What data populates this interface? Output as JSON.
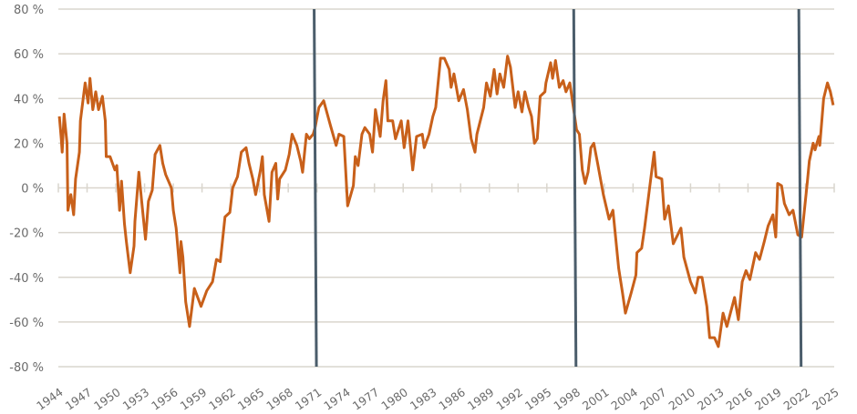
{
  "chart_data": {
    "type": "line",
    "title": "",
    "xlabel": "",
    "ylabel": "",
    "xlim": [
      1944,
      2025
    ],
    "ylim": [
      -80,
      80
    ],
    "grid": true,
    "legend": "none",
    "y_ticks": [
      80,
      60,
      40,
      20,
      0,
      -20,
      -40,
      -60,
      -80
    ],
    "y_tick_labels": [
      "80 %",
      "60 %",
      "40 %",
      "20 %",
      "0 %",
      "-20 %",
      "-40 %",
      "-60 %",
      "-80 %"
    ],
    "x_ticks": [
      1944,
      1947,
      1950,
      1953,
      1956,
      1959,
      1962,
      1965,
      1968,
      1971,
      1974,
      1977,
      1980,
      1983,
      1986,
      1989,
      1992,
      1995,
      1998,
      2001,
      2004,
      2007,
      2010,
      2013,
      2016,
      2019,
      2022,
      2025
    ],
    "x_tick_labels": [
      "1944",
      "1947",
      "1950",
      "1953",
      "1956",
      "1959",
      "1962",
      "1965",
      "1968",
      "1971",
      "1974",
      "1977",
      "1980",
      "1983",
      "1986",
      "1989",
      "1992",
      "1995",
      "1998",
      "2001",
      "2004",
      "2007",
      "2010",
      "2013",
      "2016",
      "2019",
      "2022",
      "2025"
    ],
    "vertical_markers": [
      1970.8,
      1997.9,
      2021.4
    ],
    "colors": {
      "series": "#c8601a",
      "markers": "#4b5d6b",
      "grid": "#d9d5cd",
      "text": "#6b6b6b"
    },
    "series": [
      {
        "name": "series",
        "points": [
          [
            1944.1,
            32
          ],
          [
            1944.3,
            22
          ],
          [
            1944.4,
            16
          ],
          [
            1944.6,
            33
          ],
          [
            1944.9,
            20
          ],
          [
            1945.0,
            -10
          ],
          [
            1945.3,
            -3
          ],
          [
            1945.6,
            -12
          ],
          [
            1945.8,
            4
          ],
          [
            1946.2,
            16
          ],
          [
            1946.3,
            30
          ],
          [
            1946.8,
            47
          ],
          [
            1947.1,
            38
          ],
          [
            1947.3,
            49
          ],
          [
            1947.6,
            35
          ],
          [
            1947.9,
            43
          ],
          [
            1948.2,
            35
          ],
          [
            1948.6,
            41
          ],
          [
            1948.9,
            30
          ],
          [
            1949.0,
            14
          ],
          [
            1949.4,
            14
          ],
          [
            1949.9,
            8
          ],
          [
            1950.1,
            10
          ],
          [
            1950.4,
            -10
          ],
          [
            1950.6,
            3
          ],
          [
            1950.9,
            -16
          ],
          [
            1951.1,
            -24
          ],
          [
            1951.5,
            -38
          ],
          [
            1951.9,
            -26
          ],
          [
            1952.0,
            -15
          ],
          [
            1952.4,
            7
          ],
          [
            1952.7,
            -6
          ],
          [
            1953.1,
            -23
          ],
          [
            1953.4,
            -6
          ],
          [
            1953.8,
            -1
          ],
          [
            1954.1,
            15
          ],
          [
            1954.6,
            19
          ],
          [
            1954.9,
            11
          ],
          [
            1955.2,
            6
          ],
          [
            1955.8,
            0
          ],
          [
            1956.0,
            -10
          ],
          [
            1956.3,
            -18
          ],
          [
            1956.7,
            -38
          ],
          [
            1956.8,
            -24
          ],
          [
            1957.0,
            -31
          ],
          [
            1957.3,
            -51
          ],
          [
            1957.7,
            -62
          ],
          [
            1958.2,
            -45
          ],
          [
            1958.9,
            -53
          ],
          [
            1959.5,
            -46
          ],
          [
            1960.1,
            -42
          ],
          [
            1960.5,
            -32
          ],
          [
            1960.9,
            -33
          ],
          [
            1961.4,
            -13
          ],
          [
            1961.9,
            -11
          ],
          [
            1962.2,
            0
          ],
          [
            1962.7,
            5
          ],
          [
            1963.1,
            16
          ],
          [
            1963.6,
            18
          ],
          [
            1963.9,
            11
          ],
          [
            1964.3,
            4
          ],
          [
            1964.6,
            -3
          ],
          [
            1965.1,
            8
          ],
          [
            1965.3,
            14
          ],
          [
            1965.5,
            -3
          ],
          [
            1966.0,
            -15
          ],
          [
            1966.3,
            7
          ],
          [
            1966.7,
            11
          ],
          [
            1966.9,
            -5
          ],
          [
            1967.1,
            4
          ],
          [
            1967.7,
            8
          ],
          [
            1968.1,
            15
          ],
          [
            1968.4,
            24
          ],
          [
            1968.9,
            19
          ],
          [
            1969.3,
            12
          ],
          [
            1969.5,
            7
          ],
          [
            1969.9,
            24
          ],
          [
            1970.2,
            22
          ],
          [
            1970.6,
            24
          ],
          [
            1970.8,
            27
          ],
          [
            1971.2,
            36
          ],
          [
            1971.7,
            39
          ],
          [
            1972.4,
            28
          ],
          [
            1973.0,
            19
          ],
          [
            1973.3,
            24
          ],
          [
            1973.8,
            23
          ],
          [
            1974.2,
            -8
          ],
          [
            1974.8,
            1
          ],
          [
            1975.0,
            14
          ],
          [
            1975.3,
            10
          ],
          [
            1975.7,
            24
          ],
          [
            1976.0,
            27
          ],
          [
            1976.5,
            24
          ],
          [
            1976.8,
            16
          ],
          [
            1977.1,
            35
          ],
          [
            1977.6,
            23
          ],
          [
            1977.9,
            39
          ],
          [
            1978.2,
            48
          ],
          [
            1978.4,
            30
          ],
          [
            1978.9,
            30
          ],
          [
            1979.2,
            22
          ],
          [
            1979.8,
            30
          ],
          [
            1980.1,
            18
          ],
          [
            1980.5,
            30
          ],
          [
            1981.0,
            8
          ],
          [
            1981.4,
            23
          ],
          [
            1982.0,
            24
          ],
          [
            1982.2,
            18
          ],
          [
            1982.7,
            24
          ],
          [
            1983.1,
            32
          ],
          [
            1983.4,
            36
          ],
          [
            1983.9,
            58
          ],
          [
            1984.3,
            58
          ],
          [
            1984.8,
            53
          ],
          [
            1985.0,
            45
          ],
          [
            1985.3,
            51
          ],
          [
            1985.8,
            39
          ],
          [
            1986.3,
            44
          ],
          [
            1986.7,
            35
          ],
          [
            1987.1,
            22
          ],
          [
            1987.5,
            16
          ],
          [
            1987.7,
            24
          ],
          [
            1988.4,
            36
          ],
          [
            1988.7,
            47
          ],
          [
            1989.1,
            41
          ],
          [
            1989.5,
            53
          ],
          [
            1989.8,
            42
          ],
          [
            1990.1,
            51
          ],
          [
            1990.5,
            45
          ],
          [
            1990.9,
            59
          ],
          [
            1991.2,
            54
          ],
          [
            1991.7,
            36
          ],
          [
            1992.0,
            43
          ],
          [
            1992.4,
            34
          ],
          [
            1992.7,
            43
          ],
          [
            1993.1,
            36
          ],
          [
            1993.4,
            32
          ],
          [
            1993.7,
            20
          ],
          [
            1994.0,
            22
          ],
          [
            1994.3,
            41
          ],
          [
            1994.8,
            43
          ],
          [
            1994.9,
            47
          ],
          [
            1995.4,
            56
          ],
          [
            1995.6,
            49
          ],
          [
            1995.9,
            57
          ],
          [
            1996.3,
            45
          ],
          [
            1996.7,
            48
          ],
          [
            1997.0,
            43
          ],
          [
            1997.4,
            47
          ],
          [
            1997.7,
            38
          ],
          [
            1998.1,
            26
          ],
          [
            1998.4,
            24
          ],
          [
            1998.7,
            8
          ],
          [
            1999.0,
            2
          ],
          [
            1999.3,
            7
          ],
          [
            1999.6,
            18
          ],
          [
            1999.9,
            20
          ],
          [
            2000.3,
            11
          ],
          [
            2000.9,
            -3
          ],
          [
            2001.5,
            -14
          ],
          [
            2001.9,
            -10
          ],
          [
            2002.5,
            -36
          ],
          [
            2002.9,
            -47
          ],
          [
            2003.2,
            -56
          ],
          [
            2003.8,
            -47
          ],
          [
            2004.3,
            -39
          ],
          [
            2004.4,
            -29
          ],
          [
            2004.9,
            -27
          ],
          [
            2005.2,
            -18
          ],
          [
            2005.7,
            -1
          ],
          [
            2006.2,
            16
          ],
          [
            2006.4,
            5
          ],
          [
            2007.0,
            4
          ],
          [
            2007.3,
            -14
          ],
          [
            2007.7,
            -8
          ],
          [
            2008.2,
            -25
          ],
          [
            2009.0,
            -18
          ],
          [
            2009.3,
            -31
          ],
          [
            2010.0,
            -42
          ],
          [
            2010.5,
            -47
          ],
          [
            2010.8,
            -40
          ],
          [
            2011.2,
            -40
          ],
          [
            2011.7,
            -53
          ],
          [
            2012.0,
            -67
          ],
          [
            2012.5,
            -67
          ],
          [
            2012.9,
            -71
          ],
          [
            2013.4,
            -56
          ],
          [
            2013.8,
            -62
          ],
          [
            2014.6,
            -49
          ],
          [
            2015.0,
            -59
          ],
          [
            2015.4,
            -42
          ],
          [
            2015.8,
            -37
          ],
          [
            2016.2,
            -41
          ],
          [
            2016.8,
            -29
          ],
          [
            2017.2,
            -32
          ],
          [
            2017.7,
            -24
          ],
          [
            2018.1,
            -17
          ],
          [
            2018.6,
            -12
          ],
          [
            2018.9,
            -22
          ],
          [
            2019.1,
            2
          ],
          [
            2019.5,
            1
          ],
          [
            2019.8,
            -7
          ],
          [
            2020.3,
            -12
          ],
          [
            2020.7,
            -10
          ],
          [
            2021.2,
            -21
          ],
          [
            2021.6,
            -22
          ],
          [
            2022.2,
            3
          ],
          [
            2022.4,
            12
          ],
          [
            2022.8,
            20
          ],
          [
            2023.0,
            17
          ],
          [
            2023.4,
            23
          ],
          [
            2023.5,
            19
          ],
          [
            2023.9,
            40
          ],
          [
            2024.3,
            47
          ],
          [
            2024.6,
            43
          ],
          [
            2024.9,
            37
          ]
        ]
      }
    ]
  }
}
